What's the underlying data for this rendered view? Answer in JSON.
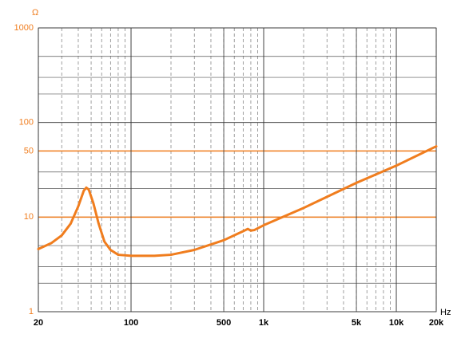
{
  "chart_data": {
    "type": "line",
    "log_x": true,
    "log_y": true,
    "x_label": "Hz",
    "y_label": "Ω",
    "x": [
      20,
      25,
      30,
      35,
      40,
      44,
      46,
      48,
      52,
      57,
      63,
      70,
      80,
      100,
      150,
      200,
      300,
      500,
      700,
      760,
      800,
      850,
      1000,
      2000,
      5000,
      10000,
      20000
    ],
    "series": [
      {
        "color": "#f07d1e",
        "values": [
          4.6,
          5.3,
          6.4,
          8.5,
          13,
          19,
          20.5,
          19.5,
          14,
          8.5,
          5.5,
          4.5,
          4.0,
          3.9,
          3.9,
          4.0,
          4.5,
          5.7,
          7.1,
          7.5,
          7.2,
          7.3,
          8.2,
          12.5,
          23,
          35,
          56
        ]
      }
    ],
    "xlim": [
      20,
      20000
    ],
    "ylim": [
      1,
      1000
    ],
    "xticks": [
      20,
      100,
      500,
      {
        "value": 1000,
        "label": "1k"
      },
      {
        "value": 5000,
        "label": "5k"
      },
      {
        "value": 10000,
        "label": "10k"
      },
      {
        "value": 20000,
        "label": "20k"
      }
    ],
    "yticks": [
      1,
      10,
      50,
      100,
      1000
    ],
    "grid": true,
    "highlight_y": [
      10,
      50
    ],
    "highlight_color": "#f07d1e",
    "tick_label_color": "#f07d1e"
  }
}
